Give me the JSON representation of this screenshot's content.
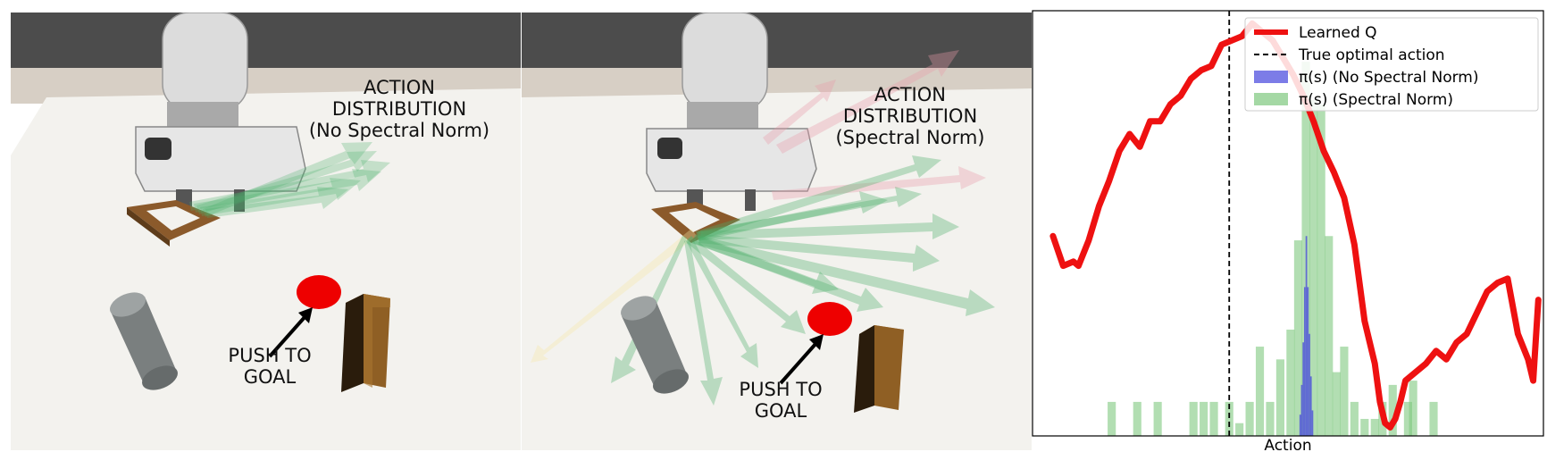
{
  "panels": [
    {
      "title_lines": [
        "ACTION",
        "DISTRIBUTION",
        "(No Spectral Norm)"
      ],
      "push_lines": [
        "PUSH TO",
        "GOAL"
      ]
    },
    {
      "title_lines": [
        "ACTION",
        "DISTRIBUTION",
        "(Spectral Norm)"
      ],
      "push_lines": [
        "PUSH TO",
        "GOAL"
      ]
    }
  ],
  "colors": {
    "learned_q": "#ee1111",
    "no_spectral": "#4444dd",
    "spectral": "#7ec87e",
    "goal": "#ee0000",
    "arrow_green": "#4caf6a",
    "arrow_pink": "#e89aa8"
  },
  "chart_data": {
    "type": "line",
    "xlabel": "Action",
    "ylabel": "",
    "title": "",
    "x_ticks_shown": false,
    "y_ticks_shown": false,
    "grid": false,
    "legend_position": "top-right",
    "xlim": [
      0,
      100
    ],
    "ylim": [
      0,
      100
    ],
    "legend": [
      {
        "label": "Learned Q",
        "kind": "line",
        "color": "#ee1111"
      },
      {
        "label": "True optimal action",
        "kind": "dashed",
        "color": "#000000"
      },
      {
        "label": "π(s) (No Spectral Norm)",
        "kind": "patch",
        "color": "#4444dd"
      },
      {
        "label": "π(s) (Spectral Norm)",
        "kind": "patch",
        "color": "#7ec87e"
      }
    ],
    "learned_q": {
      "x": [
        4,
        6,
        8,
        9,
        11,
        13,
        15,
        17,
        19,
        21,
        23,
        25,
        27,
        29,
        31,
        33,
        35,
        37,
        39,
        41,
        43,
        45,
        47,
        49,
        51,
        53,
        55,
        57,
        59,
        61,
        63,
        65,
        67,
        68,
        69,
        70,
        71,
        72,
        73,
        75,
        77,
        79,
        81,
        83,
        85,
        87,
        89,
        91,
        93,
        95,
        97,
        98,
        99
      ],
      "y": [
        47,
        40,
        41,
        40,
        46,
        54,
        60,
        67,
        71,
        68,
        74,
        74,
        78,
        80,
        84,
        86,
        87,
        92,
        93,
        94,
        97,
        95,
        93,
        89,
        85,
        80,
        74,
        67,
        62,
        56,
        45,
        27,
        17,
        8,
        3,
        2,
        4,
        8,
        13,
        15,
        17,
        20,
        18,
        22,
        24,
        29,
        34,
        36,
        37,
        24,
        18,
        13,
        32
      ]
    },
    "true_optimal_action_x": 38.5,
    "spectral_norm_hist": {
      "bin_width": 1.6,
      "bins": [
        {
          "x": 15.5,
          "h": 8
        },
        {
          "x": 20.5,
          "h": 8
        },
        {
          "x": 24.5,
          "h": 8
        },
        {
          "x": 31.5,
          "h": 8
        },
        {
          "x": 33.5,
          "h": 8
        },
        {
          "x": 35.5,
          "h": 8
        },
        {
          "x": 38.5,
          "h": 8
        },
        {
          "x": 40.5,
          "h": 3
        },
        {
          "x": 42.5,
          "h": 8
        },
        {
          "x": 44.5,
          "h": 21
        },
        {
          "x": 46.5,
          "h": 8
        },
        {
          "x": 48.5,
          "h": 18
        },
        {
          "x": 50.5,
          "h": 25
        },
        {
          "x": 52,
          "h": 46
        },
        {
          "x": 53.5,
          "h": 88
        },
        {
          "x": 55,
          "h": 79
        },
        {
          "x": 56.5,
          "h": 78
        },
        {
          "x": 58,
          "h": 47
        },
        {
          "x": 59.5,
          "h": 15
        },
        {
          "x": 61,
          "h": 21
        },
        {
          "x": 63,
          "h": 8
        },
        {
          "x": 65,
          "h": 4
        },
        {
          "x": 67,
          "h": 4
        },
        {
          "x": 68.5,
          "h": 8
        },
        {
          "x": 70.5,
          "h": 12
        },
        {
          "x": 73.5,
          "h": 8
        },
        {
          "x": 74.5,
          "h": 13
        },
        {
          "x": 78.5,
          "h": 8
        }
      ]
    },
    "no_spectral_norm_hist": {
      "bin_width": 0.3,
      "bins": [
        {
          "x": 52.4,
          "h": 5
        },
        {
          "x": 52.7,
          "h": 12
        },
        {
          "x": 53.0,
          "h": 22
        },
        {
          "x": 53.3,
          "h": 35
        },
        {
          "x": 53.6,
          "h": 47
        },
        {
          "x": 53.9,
          "h": 35
        },
        {
          "x": 54.2,
          "h": 24
        },
        {
          "x": 54.5,
          "h": 14
        },
        {
          "x": 54.8,
          "h": 6
        }
      ]
    }
  }
}
